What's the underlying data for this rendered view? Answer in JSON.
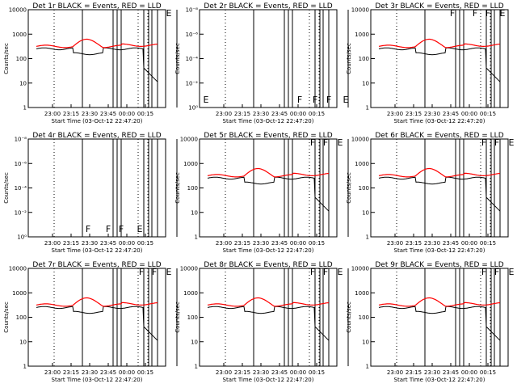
{
  "colors": {
    "events": "#000000",
    "lld": "#ff0000",
    "background": "#ffffff",
    "frame": "#000000"
  },
  "chart_data": [
    {
      "type": "line",
      "title": "Det 1r BLACK = Events, RED = LLD",
      "xlabel": "Start Time (03-Oct-12 22:47:20)",
      "ylabel": "Counts/sec",
      "yscale": "log",
      "ylim": [
        1,
        10000
      ],
      "ytick_labels": [
        "1",
        "10",
        "100",
        "1000",
        "10000"
      ],
      "xtick_labels": [
        "23:00",
        "23:15",
        "23:30",
        "23:45",
        "00:00",
        "00:15"
      ],
      "flags": [
        "E"
      ],
      "lines": "standard",
      "grid": "dotted vertical"
    },
    {
      "type": "line",
      "title": "Det 2r BLACK = Events, RED = LLD",
      "xlabel": "Start Time (03-Oct-12 22:47:20)",
      "ylabel": "Counts/sec",
      "yscale": "log",
      "ylim": [
        1,
        1e-08
      ],
      "ytick_labels": [
        "10⁰",
        "10⁻²",
        "10⁻⁴",
        "10⁻⁶",
        "10⁻⁸"
      ],
      "xtick_labels": [
        "23:00",
        "23:15",
        "23:30",
        "23:45",
        "00:00",
        "00:15"
      ],
      "flags": [
        "E",
        "F",
        "F",
        "F",
        "E"
      ],
      "lines": "empty",
      "grid": "dotted vertical"
    },
    {
      "type": "line",
      "title": "Det 3r BLACK = Events, RED = LLD",
      "xlabel": "Start Time (03-Oct-12 22:47:20)",
      "ylabel": "Counts/sec",
      "yscale": "log",
      "ylim": [
        1,
        10000
      ],
      "ytick_labels": [
        "1",
        "10",
        "100",
        "1000",
        "10000"
      ],
      "xtick_labels": [
        "23:00",
        "23:15",
        "23:30",
        "23:45",
        "00:00",
        "00:15"
      ],
      "flags": [
        "F",
        "F",
        "F",
        "E"
      ],
      "lines": "det3",
      "grid": "dotted vertical"
    },
    {
      "type": "line",
      "title": "Det 4r BLACK = Events, RED = LLD",
      "xlabel": "Start Time (03-Oct-12 22:47:20)",
      "ylabel": "Counts/sec",
      "yscale": "log",
      "ylim": [
        1,
        1e-08
      ],
      "ytick_labels": [
        "10⁰",
        "10⁻²",
        "10⁻⁴",
        "10⁻⁶",
        "10⁻⁸"
      ],
      "xtick_labels": [
        "23:00",
        "23:15",
        "23:30",
        "23:45",
        "00:00",
        "00:15"
      ],
      "flags": [
        "F",
        "F",
        "F",
        "E"
      ],
      "lines": "empty",
      "grid": "dotted vertical"
    },
    {
      "type": "line",
      "title": "Det 5r BLACK = Events, RED = LLD",
      "xlabel": "Start Time (03-Oct-12 22:47:20)",
      "ylabel": "Counts/sec",
      "yscale": "log",
      "ylim": [
        1,
        10000
      ],
      "ytick_labels": [
        "1",
        "10",
        "100",
        "1000",
        "10000"
      ],
      "xtick_labels": [
        "23:00",
        "23:15",
        "23:30",
        "23:45",
        "00:00",
        "00:15"
      ],
      "flags": [
        "F",
        "F",
        "E"
      ],
      "lines": "standard",
      "grid": "dotted vertical"
    },
    {
      "type": "line",
      "title": "Det 6r BLACK = Events, RED = LLD",
      "xlabel": "Start Time (03-Oct-12 22:47:20)",
      "ylabel": "Counts/sec",
      "yscale": "log",
      "ylim": [
        1,
        10000
      ],
      "ytick_labels": [
        "1",
        "10",
        "100",
        "1000",
        "10000"
      ],
      "xtick_labels": [
        "23:00",
        "23:15",
        "23:30",
        "23:45",
        "00:00",
        "00:15"
      ],
      "flags": [
        "F",
        "F",
        "E"
      ],
      "lines": "standard",
      "grid": "dotted vertical"
    },
    {
      "type": "line",
      "title": "Det 7r BLACK = Events, RED = LLD",
      "xlabel": "Start Time (03-Oct-12 22:47:20)",
      "ylabel": "Counts/sec",
      "yscale": "log",
      "ylim": [
        1,
        10000
      ],
      "ytick_labels": [
        "1",
        "10",
        "100",
        "1000",
        "10000"
      ],
      "xtick_labels": [
        "23:00",
        "23:15",
        "23:30",
        "23:45",
        "00:00",
        "00:15"
      ],
      "flags": [
        "F",
        "F",
        "E"
      ],
      "lines": "standard",
      "grid": "dotted vertical"
    },
    {
      "type": "line",
      "title": "Det 8r BLACK = Events, RED = LLD",
      "xlabel": "Start Time (03-Oct-12 22:47:20)",
      "ylabel": "Counts/sec",
      "yscale": "log",
      "ylim": [
        1,
        10000
      ],
      "ytick_labels": [
        "1",
        "10",
        "100",
        "1000",
        "10000"
      ],
      "xtick_labels": [
        "23:00",
        "23:15",
        "23:30",
        "23:45",
        "00:00",
        "00:15"
      ],
      "flags": [
        "F",
        "F",
        "E"
      ],
      "lines": "standard",
      "grid": "dotted vertical"
    },
    {
      "type": "line",
      "title": "Det 9r BLACK = Events, RED = LLD",
      "xlabel": "Start Time (03-Oct-12 22:47:20)",
      "ylabel": "Counts/sec",
      "yscale": "log",
      "ylim": [
        1,
        10000
      ],
      "ytick_labels": [
        "1",
        "10",
        "100",
        "1000",
        "10000"
      ],
      "xtick_labels": [
        "23:00",
        "23:15",
        "23:30",
        "23:45",
        "00:00",
        "00:15"
      ],
      "flags": [
        "F",
        "F",
        "E"
      ],
      "lines": "standard",
      "grid": "dotted vertical"
    }
  ]
}
